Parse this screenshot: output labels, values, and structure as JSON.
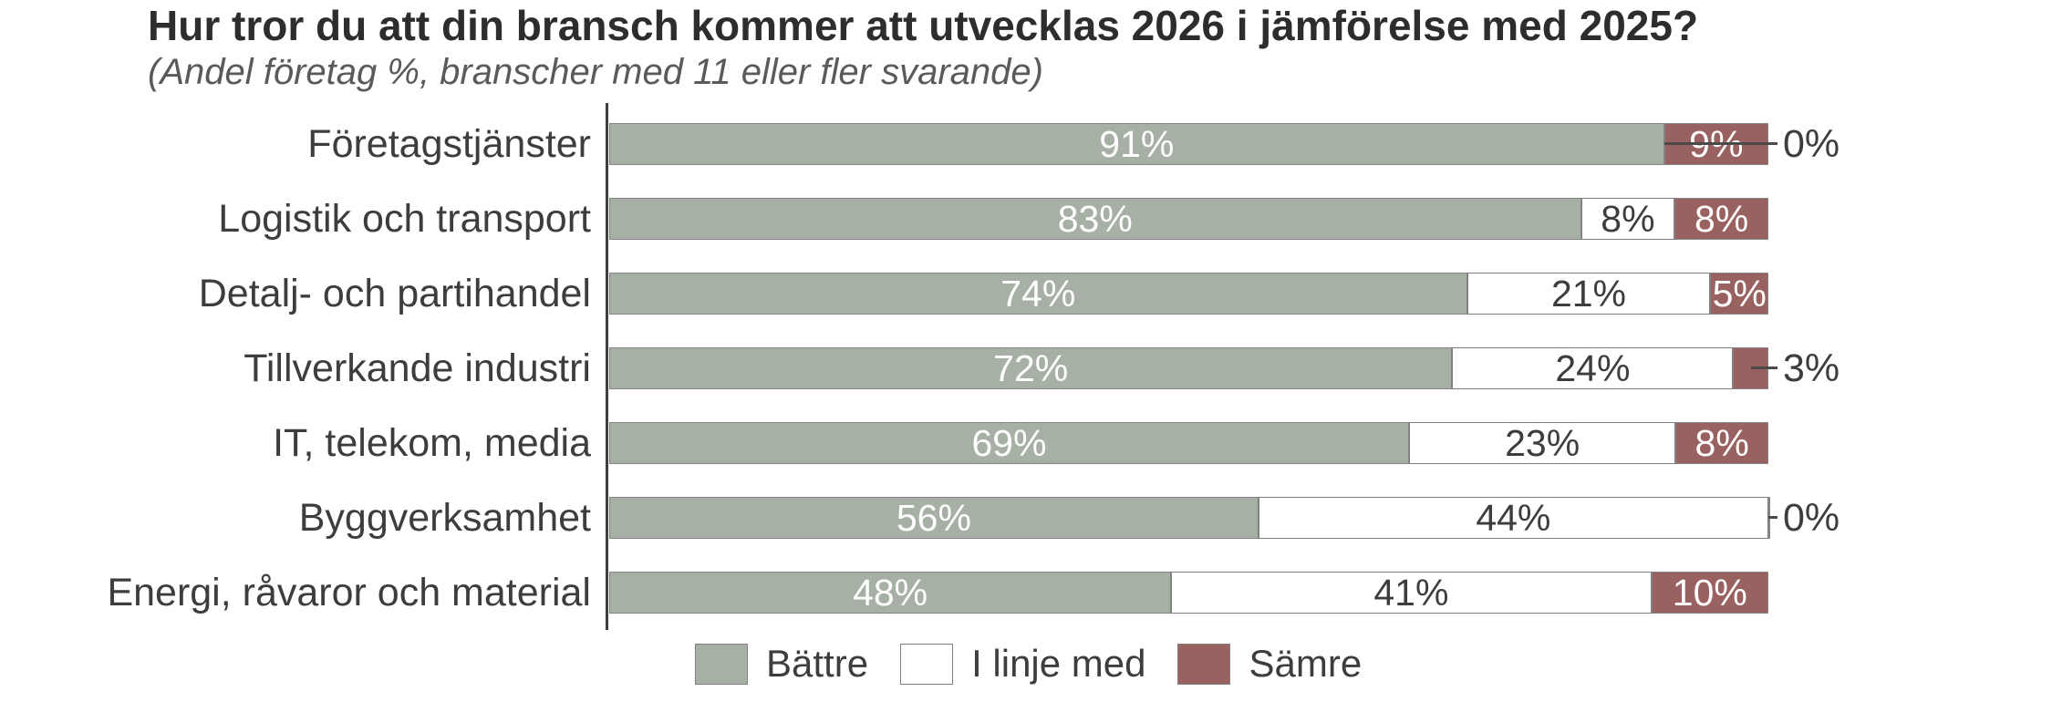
{
  "page": {
    "background": "#ffffff"
  },
  "chart_data": {
    "type": "bar",
    "orientation": "horizontal",
    "stacked": true,
    "title": "Hur tror du att din bransch kommer att utvecklas 2026 i jämförelse med 2025?",
    "subtitle": "(Andel företag %, branscher med 11 eller fler svarande)",
    "categories": [
      "Företagstjänster",
      "Logistik och transport",
      "Detalj- och partihandel",
      "Tillverkande industri",
      "IT, telekom, media",
      "Byggverksamhet",
      "Energi, råvaror och material"
    ],
    "series": [
      {
        "name": "Bättre",
        "color": "#a7b0a4",
        "text_color": "#ffffff",
        "values": [
          91,
          83,
          74,
          72,
          69,
          56,
          48
        ]
      },
      {
        "name": "I linje med",
        "color": "#ffffff",
        "text_color": "#3d3d3d",
        "values": [
          0,
          8,
          21,
          24,
          23,
          44,
          41
        ]
      },
      {
        "name": "Sämre",
        "color": "#9a6161",
        "text_color": "#ffffff",
        "values": [
          9,
          8,
          5,
          3,
          8,
          0,
          10
        ]
      }
    ],
    "value_suffix": "%",
    "xlim": [
      0,
      100
    ],
    "grid": false,
    "legend_position": "bottom",
    "legend": [
      "Bättre",
      "I linje med",
      "Sämre"
    ]
  },
  "styles": {
    "axis_color": "#3f3f3f",
    "segment_border_color": "#848484",
    "label_color": "#3d3d3d",
    "title_color": "#2d2d2d",
    "subtitle_color": "#5a5a5a",
    "leader_line_color": "#4a4a4a"
  }
}
